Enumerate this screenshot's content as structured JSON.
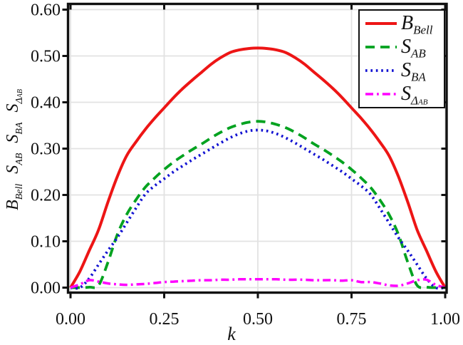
{
  "figure": {
    "background": "#ffffff",
    "xlabel": "k",
    "ylabel_tokens": [
      {
        "main": "B",
        "sub": "Bell"
      },
      {
        "main": "S",
        "sub": "AB"
      },
      {
        "main": "S",
        "sub": "BA"
      },
      {
        "main": "S",
        "sub": "Δ",
        "subsub": "AB"
      }
    ]
  },
  "chart_data": {
    "type": "line",
    "title": "",
    "xlabel": "k",
    "ylabel": "B_Bell  S_AB  S_BA  S_Delta_AB",
    "xlim": [
      0,
      1
    ],
    "ylim": [
      0,
      0.6
    ],
    "grid": true,
    "legend_position": "top-right",
    "xticks": [
      "0.00",
      "0.25",
      "0.50",
      "0.75",
      "1.00"
    ],
    "yticks": [
      "0.00",
      "0.10",
      "0.20",
      "0.30",
      "0.40",
      "0.50",
      "0.60"
    ],
    "x": [
      0,
      0.025,
      0.05,
      0.075,
      0.1,
      0.125,
      0.15,
      0.175,
      0.2,
      0.225,
      0.25,
      0.275,
      0.3,
      0.325,
      0.35,
      0.375,
      0.4,
      0.425,
      0.45,
      0.475,
      0.5,
      0.525,
      0.55,
      0.575,
      0.6,
      0.625,
      0.65,
      0.675,
      0.7,
      0.725,
      0.75,
      0.775,
      0.8,
      0.825,
      0.85,
      0.875,
      0.9,
      0.925,
      0.95,
      0.975,
      1
    ],
    "series": [
      {
        "name": "B_Bell",
        "label_main": "B",
        "label_sub": "Bell",
        "color": "#ed1515",
        "style": "solid",
        "peak": 0.517,
        "values": [
          0,
          0.035,
          0.08,
          0.125,
          0.185,
          0.24,
          0.285,
          0.315,
          0.342,
          0.366,
          0.388,
          0.41,
          0.43,
          0.448,
          0.465,
          0.482,
          0.496,
          0.507,
          0.513,
          0.516,
          0.517,
          0.516,
          0.513,
          0.507,
          0.496,
          0.482,
          0.465,
          0.448,
          0.43,
          0.41,
          0.388,
          0.366,
          0.342,
          0.315,
          0.285,
          0.24,
          0.185,
          0.125,
          0.08,
          0.035,
          0
        ]
      },
      {
        "name": "S_AB",
        "label_main": "S",
        "label_sub": "AB",
        "color": "#00a21f",
        "style": "dashed",
        "peak": 0.359,
        "values": [
          0,
          0,
          0.001,
          0.005,
          0.055,
          0.115,
          0.158,
          0.19,
          0.217,
          0.237,
          0.255,
          0.271,
          0.285,
          0.298,
          0.31,
          0.323,
          0.335,
          0.345,
          0.352,
          0.357,
          0.359,
          0.357,
          0.352,
          0.345,
          0.335,
          0.323,
          0.31,
          0.298,
          0.285,
          0.271,
          0.255,
          0.237,
          0.217,
          0.19,
          0.158,
          0.115,
          0.055,
          0.005,
          0.001,
          0,
          0
        ]
      },
      {
        "name": "S_BA",
        "label_main": "S",
        "label_sub": "BA",
        "color": "#1313d2",
        "style": "dotted",
        "peak": 0.34,
        "values": [
          0,
          0,
          0.02,
          0.05,
          0.08,
          0.108,
          0.14,
          0.172,
          0.202,
          0.22,
          0.235,
          0.25,
          0.263,
          0.276,
          0.288,
          0.3,
          0.312,
          0.323,
          0.332,
          0.338,
          0.34,
          0.338,
          0.332,
          0.323,
          0.312,
          0.3,
          0.288,
          0.276,
          0.263,
          0.25,
          0.235,
          0.22,
          0.202,
          0.172,
          0.14,
          0.108,
          0.08,
          0.05,
          0.02,
          0,
          0
        ]
      },
      {
        "name": "S_Delta_AB",
        "label_main": "S",
        "label_sub": "Δ",
        "label_subsub": "AB",
        "color": "#ff00ff",
        "style": "dashdot",
        "peak": 0.018,
        "values": [
          0,
          0.007,
          0.016,
          0.013,
          0.009,
          0.007,
          0.006,
          0.007,
          0.008,
          0.01,
          0.012,
          0.013,
          0.014,
          0.015,
          0.016,
          0.016,
          0.017,
          0.017,
          0.018,
          0.018,
          0.018,
          0.018,
          0.018,
          0.017,
          0.017,
          0.017,
          0.016,
          0.016,
          0.016,
          0.015,
          0.016,
          0.012,
          0.012,
          0.009,
          0.005,
          0.004,
          0.009,
          0.016,
          0.017,
          0.006,
          0
        ]
      }
    ]
  }
}
